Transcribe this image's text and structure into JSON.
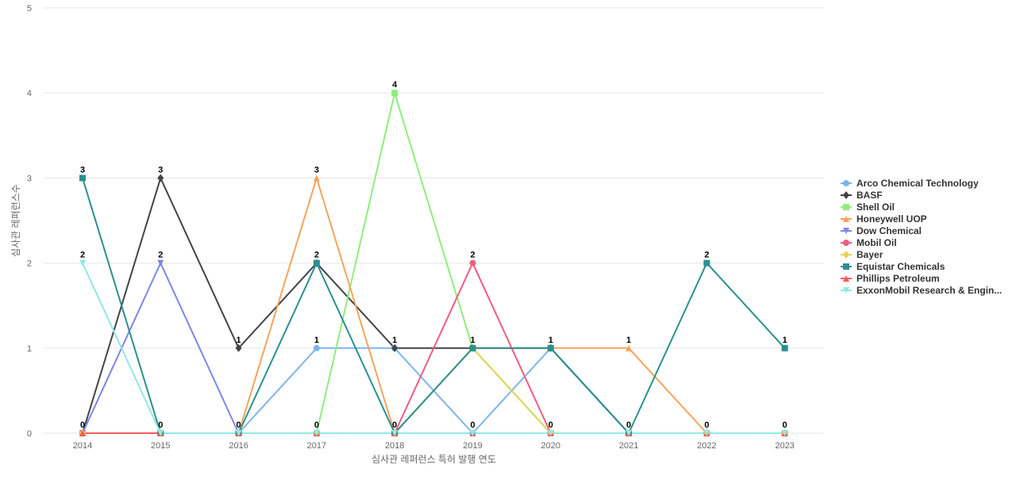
{
  "chart_data": {
    "type": "line",
    "title": "",
    "xlabel": "심사관 레퍼런스 특허 발행 연도",
    "ylabel": "심사관 레퍼런스수",
    "x": [
      "2014",
      "2015",
      "2016",
      "2017",
      "2018",
      "2019",
      "2020",
      "2021",
      "2022",
      "2023"
    ],
    "ylim": [
      0,
      5
    ],
    "yticks": [
      "0",
      "1",
      "2",
      "3",
      "4",
      "5"
    ],
    "grid": true,
    "legend_position": "right",
    "series": [
      {
        "name": "Arco Chemical Technology",
        "color": "#7cb5ec",
        "marker": "circle",
        "values": [
          0,
          0,
          0,
          1,
          1,
          0,
          1,
          0,
          0,
          0
        ]
      },
      {
        "name": "BASF",
        "color": "#434348",
        "marker": "diamond",
        "values": [
          0,
          3,
          1,
          2,
          1,
          1,
          1,
          0,
          0,
          0
        ]
      },
      {
        "name": "Shell Oil",
        "color": "#90ed7d",
        "marker": "square",
        "values": [
          0,
          0,
          0,
          0,
          4,
          1,
          0,
          0,
          0,
          0
        ]
      },
      {
        "name": "Honeywell UOP",
        "color": "#f7a35c",
        "marker": "triangle",
        "values": [
          0,
          0,
          0,
          3,
          0,
          1,
          1,
          1,
          0,
          0
        ]
      },
      {
        "name": "Dow Chemical",
        "color": "#8085e9",
        "marker": "triangle-down",
        "values": [
          0,
          2,
          0,
          0,
          0,
          0,
          0,
          0,
          0,
          0
        ]
      },
      {
        "name": "Mobil Oil",
        "color": "#f15c80",
        "marker": "circle",
        "values": [
          0,
          0,
          0,
          0,
          0,
          2,
          0,
          0,
          0,
          0
        ]
      },
      {
        "name": "Bayer",
        "color": "#e4d354",
        "marker": "diamond",
        "values": [
          0,
          0,
          0,
          0,
          0,
          1,
          0,
          0,
          0,
          0
        ]
      },
      {
        "name": "Equistar Chemicals",
        "color": "#2b908f",
        "marker": "square",
        "values": [
          3,
          0,
          0,
          2,
          0,
          1,
          1,
          0,
          2,
          1
        ]
      },
      {
        "name": "Phillips Petroleum",
        "color": "#f45b5b",
        "marker": "triangle",
        "values": [
          0,
          0,
          0,
          0,
          0,
          0,
          0,
          0,
          0,
          0
        ]
      },
      {
        "name": "ExxonMobil Research & Engin...",
        "color": "#91e8e1",
        "marker": "triangle-down",
        "values": [
          2,
          0,
          0,
          0,
          0,
          0,
          0,
          0,
          0,
          0
        ]
      }
    ],
    "data_labels": [
      {
        "x": "2014",
        "y": 3,
        "text": "3"
      },
      {
        "x": "2014",
        "y": 2,
        "text": "2"
      },
      {
        "x": "2014",
        "y": 0,
        "text": "0"
      },
      {
        "x": "2015",
        "y": 3,
        "text": "3"
      },
      {
        "x": "2015",
        "y": 2,
        "text": "2"
      },
      {
        "x": "2015",
        "y": 0,
        "text": "0"
      },
      {
        "x": "2016",
        "y": 1,
        "text": "1"
      },
      {
        "x": "2016",
        "y": 0,
        "text": "0"
      },
      {
        "x": "2017",
        "y": 3,
        "text": "3"
      },
      {
        "x": "2017",
        "y": 2,
        "text": "2"
      },
      {
        "x": "2017",
        "y": 1,
        "text": "1"
      },
      {
        "x": "2017",
        "y": 0,
        "text": "0"
      },
      {
        "x": "2018",
        "y": 4,
        "text": "4"
      },
      {
        "x": "2018",
        "y": 1,
        "text": "1"
      },
      {
        "x": "2018",
        "y": 0,
        "text": "0"
      },
      {
        "x": "2019",
        "y": 2,
        "text": "2"
      },
      {
        "x": "2019",
        "y": 1,
        "text": "1"
      },
      {
        "x": "2019",
        "y": 0,
        "text": "0"
      },
      {
        "x": "2020",
        "y": 1,
        "text": "1"
      },
      {
        "x": "2020",
        "y": 0,
        "text": "0"
      },
      {
        "x": "2021",
        "y": 1,
        "text": "1"
      },
      {
        "x": "2021",
        "y": 0,
        "text": "0"
      },
      {
        "x": "2022",
        "y": 2,
        "text": "2"
      },
      {
        "x": "2022",
        "y": 0,
        "text": "0"
      },
      {
        "x": "2023",
        "y": 1,
        "text": "1"
      },
      {
        "x": "2023",
        "y": 0,
        "text": "0"
      }
    ]
  }
}
